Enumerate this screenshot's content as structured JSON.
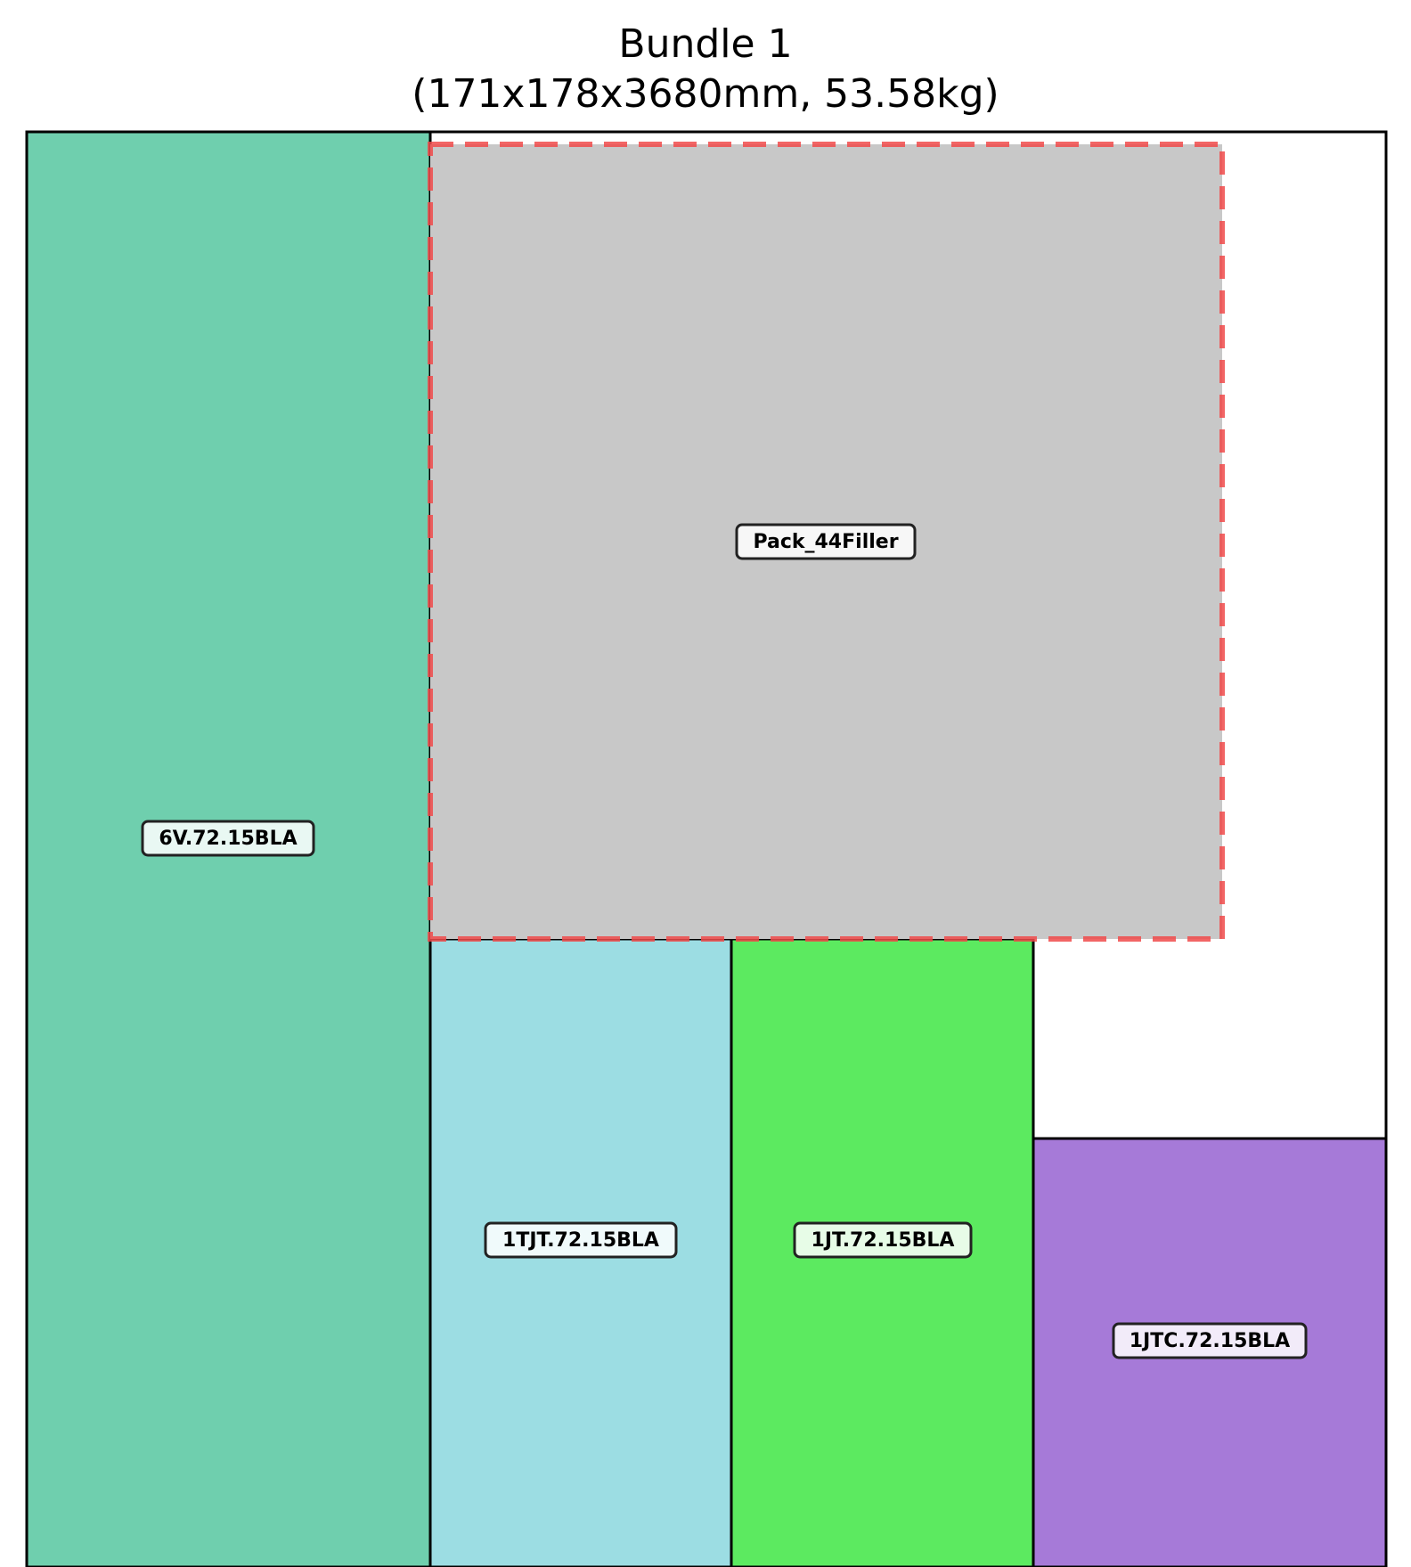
{
  "title": {
    "line1": "Bundle 1",
    "line2": "(171x178x3680mm, 53.58kg)"
  },
  "pieces": [
    {
      "id": "p1",
      "label": "6V.72.15BLA",
      "color": "#6fcfae"
    },
    {
      "id": "p2",
      "label": "Pack_44Filler",
      "color": "#c8c8c8",
      "highlight": "#f04a4a"
    },
    {
      "id": "p3",
      "label": "1TJT.72.15BLA",
      "color": "#9cdde3"
    },
    {
      "id": "p4",
      "label": "1JT.72.15BLA",
      "color": "#5cea60"
    },
    {
      "id": "p5",
      "label": "1JTC.72.15BLA",
      "color": "#a67ad8"
    }
  ]
}
